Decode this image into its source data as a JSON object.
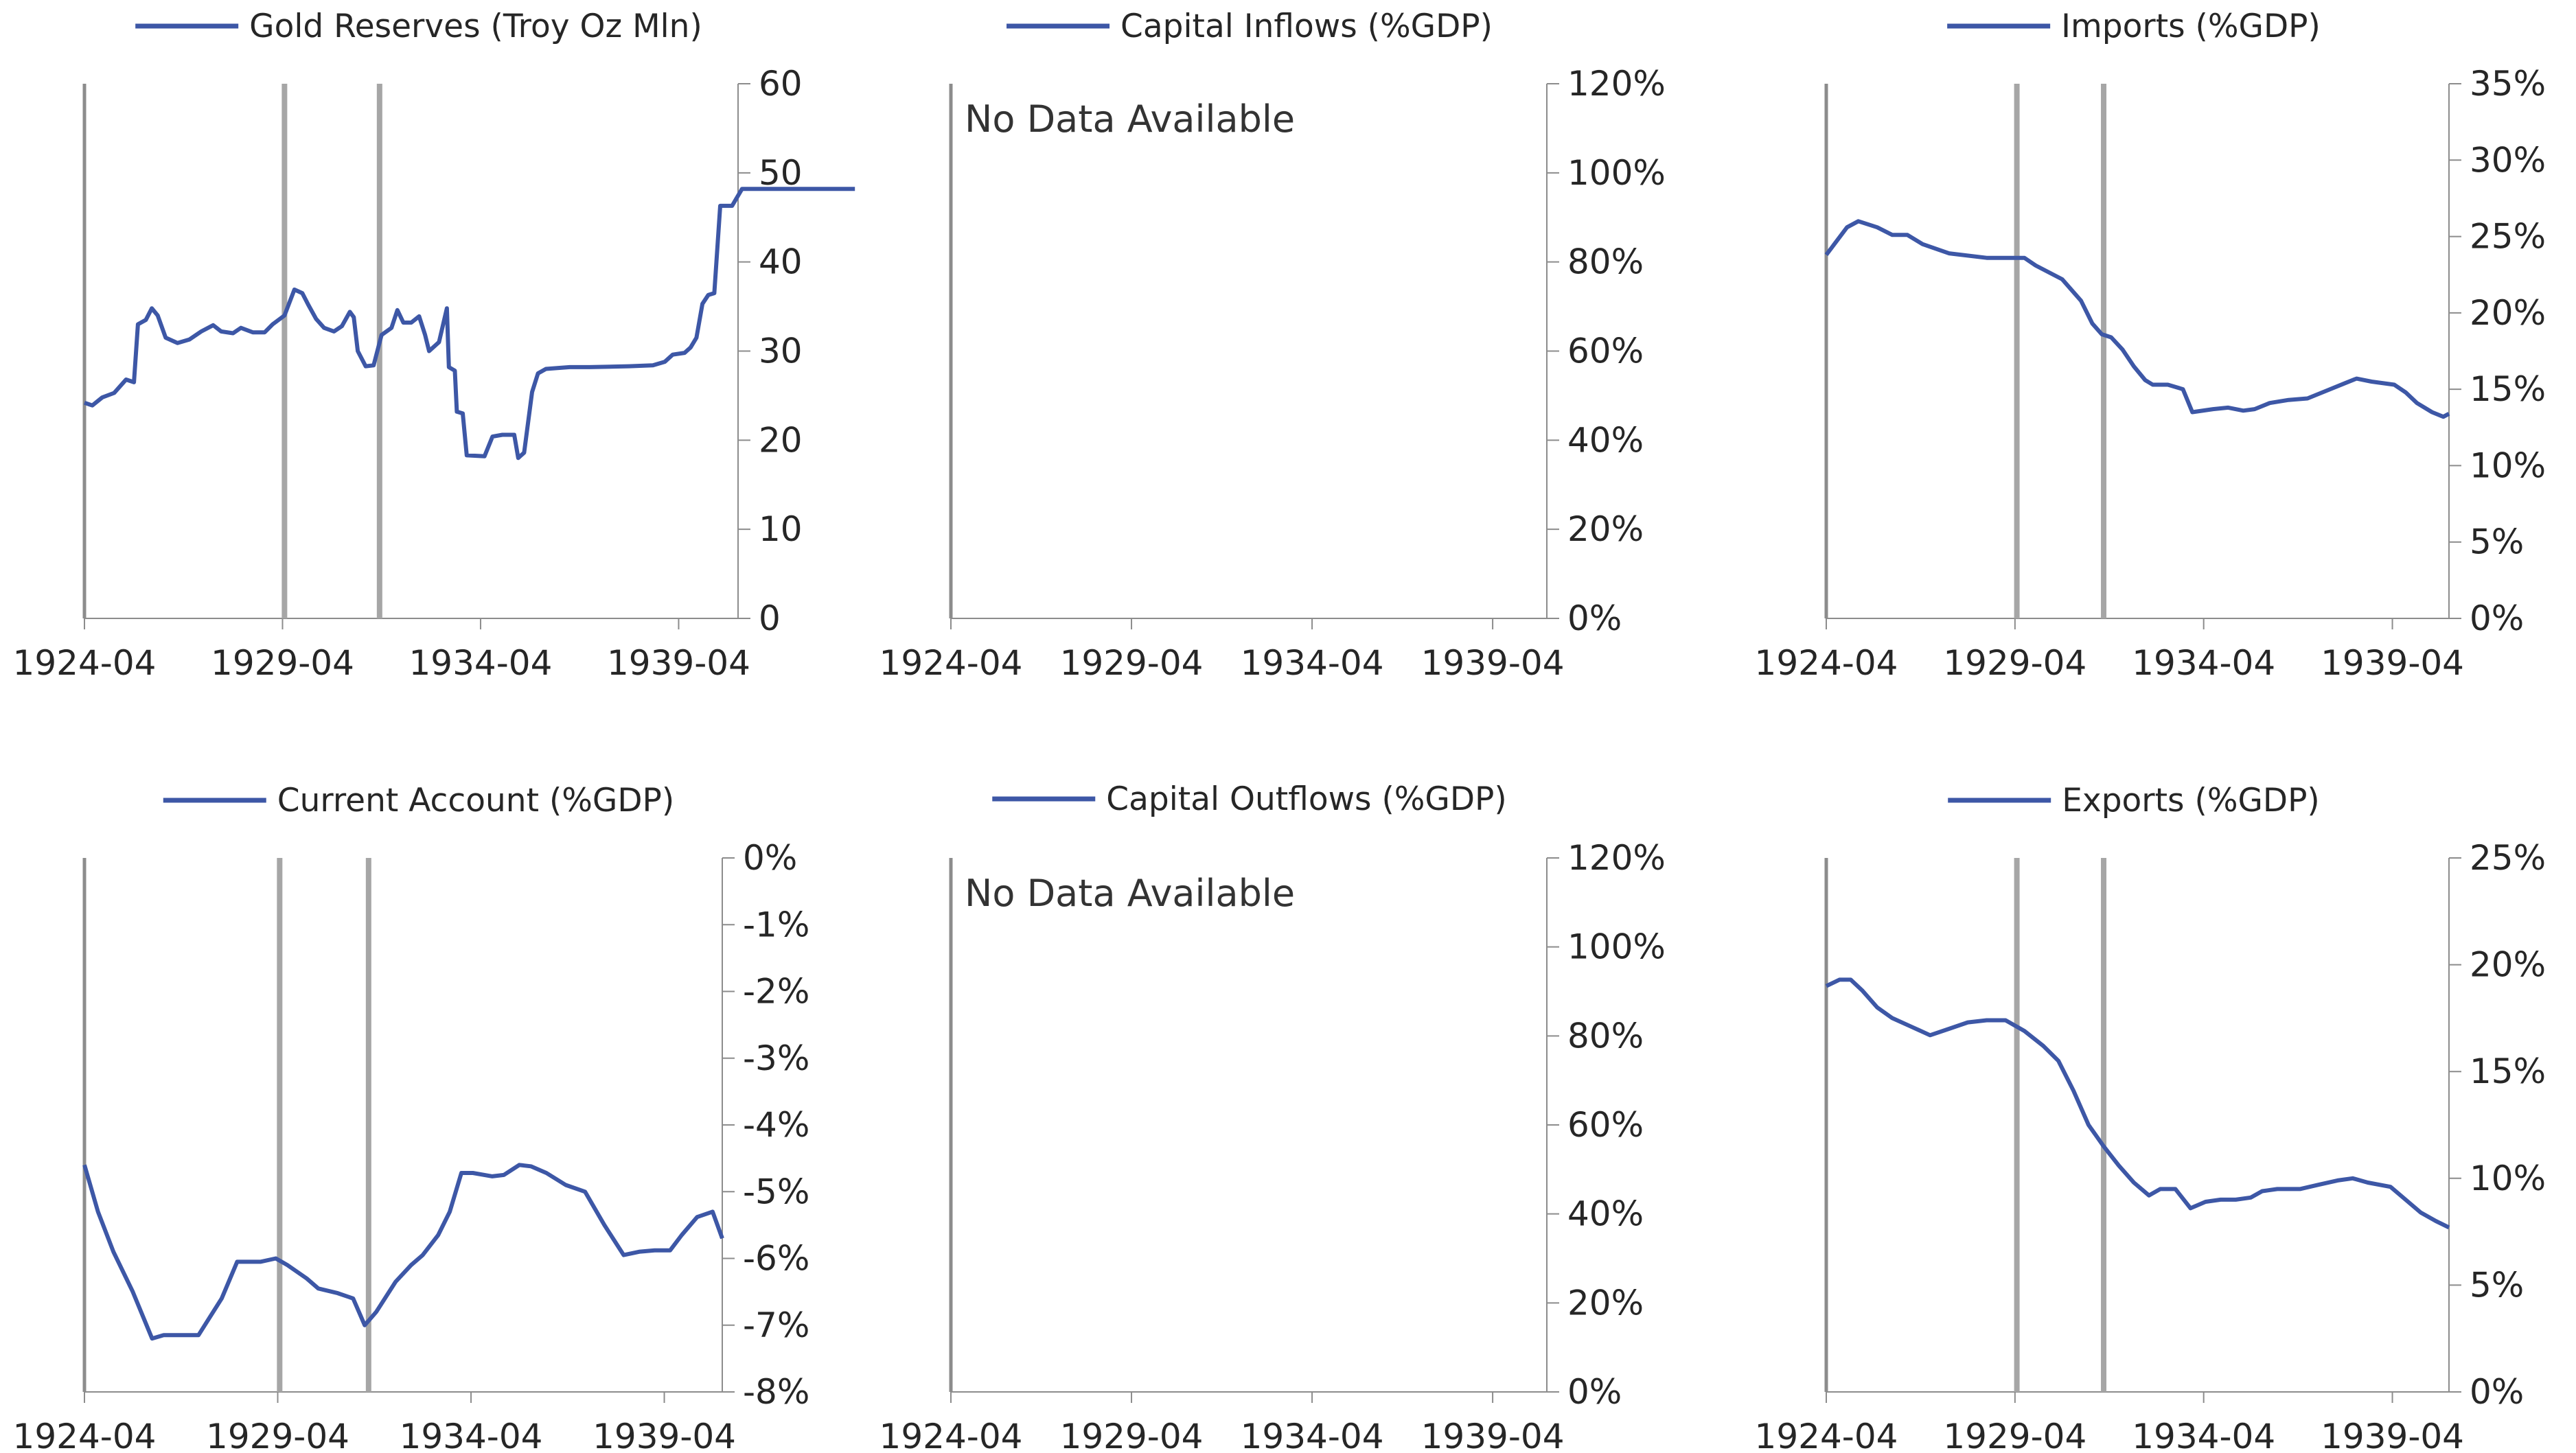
{
  "colors": {
    "line": "#3d57a6",
    "axis": "#8c8c8c",
    "event_line": "#a6a6a6",
    "text": "#262626"
  },
  "chart_data": [
    {
      "type": "line",
      "title": "",
      "series": [
        {
          "name": "Gold Reserves (Troy Oz Mln)",
          "points": [
            [
              1924.25,
              24.2
            ],
            [
              1924.45,
              23.9
            ],
            [
              1924.7,
              24.8
            ],
            [
              1925.0,
              25.3
            ],
            [
              1925.3,
              26.8
            ],
            [
              1925.5,
              26.5
            ],
            [
              1925.6,
              33.0
            ],
            [
              1925.8,
              33.5
            ],
            [
              1925.95,
              34.8
            ],
            [
              1926.1,
              34.0
            ],
            [
              1926.3,
              31.5
            ],
            [
              1926.6,
              30.9
            ],
            [
              1926.9,
              31.3
            ],
            [
              1927.2,
              32.2
            ],
            [
              1927.5,
              32.9
            ],
            [
              1927.7,
              32.2
            ],
            [
              1928.0,
              32.0
            ],
            [
              1928.2,
              32.6
            ],
            [
              1928.5,
              32.1
            ],
            [
              1928.8,
              32.1
            ],
            [
              1929.0,
              33.0
            ],
            [
              1929.3,
              34.0
            ],
            [
              1929.55,
              36.9
            ],
            [
              1929.75,
              36.5
            ],
            [
              1929.9,
              35.2
            ],
            [
              1930.1,
              33.6
            ],
            [
              1930.3,
              32.6
            ],
            [
              1930.55,
              32.2
            ],
            [
              1930.75,
              32.8
            ],
            [
              1930.95,
              34.4
            ],
            [
              1931.05,
              33.8
            ],
            [
              1931.15,
              30.0
            ],
            [
              1931.35,
              28.3
            ],
            [
              1931.55,
              28.4
            ],
            [
              1931.75,
              31.8
            ],
            [
              1932.0,
              32.6
            ],
            [
              1932.15,
              34.6
            ],
            [
              1932.3,
              33.2
            ],
            [
              1932.5,
              33.2
            ],
            [
              1932.7,
              33.9
            ],
            [
              1932.85,
              31.8
            ],
            [
              1932.95,
              30.0
            ],
            [
              1933.2,
              31.0
            ],
            [
              1933.4,
              34.8
            ],
            [
              1933.45,
              28.2
            ],
            [
              1933.6,
              27.8
            ],
            [
              1933.65,
              23.2
            ],
            [
              1933.8,
              23.0
            ],
            [
              1933.9,
              18.3
            ],
            [
              1934.35,
              18.2
            ],
            [
              1934.55,
              20.4
            ],
            [
              1934.8,
              20.6
            ],
            [
              1935.1,
              20.6
            ],
            [
              1935.2,
              18.0
            ],
            [
              1935.35,
              18.6
            ],
            [
              1935.55,
              25.4
            ],
            [
              1935.7,
              27.5
            ],
            [
              1935.9,
              28.0
            ],
            [
              1936.5,
              28.2
            ],
            [
              1937.0,
              28.2
            ],
            [
              1938.0,
              28.3
            ],
            [
              1938.6,
              28.4
            ],
            [
              1938.9,
              28.8
            ],
            [
              1939.1,
              29.6
            ],
            [
              1939.4,
              29.8
            ],
            [
              1939.55,
              30.4
            ],
            [
              1939.7,
              31.5
            ],
            [
              1939.85,
              35.3
            ],
            [
              1940.0,
              36.3
            ],
            [
              1940.15,
              36.5
            ],
            [
              1940.3,
              46.3
            ],
            [
              1940.6,
              46.3
            ],
            [
              1940.85,
              48.2
            ],
            [
              1941.3,
              48.2
            ],
            [
              1942.5,
              48.2
            ],
            [
              1943.7,
              48.2
            ]
          ]
        }
      ],
      "x_ticks": [
        "1924-04",
        "1929-04",
        "1934-04",
        "1939-04"
      ],
      "y_ticks": [
        "0",
        "10",
        "20",
        "30",
        "40",
        "50",
        "60"
      ],
      "ylim": [
        0,
        60
      ],
      "event_lines": [
        1929.3,
        1931.7
      ]
    },
    {
      "type": "line",
      "title": "",
      "series": [
        {
          "name": "Capital Inflows (%GDP)",
          "points": []
        }
      ],
      "annotation": "No Data Available",
      "x_ticks": [
        "1924-04",
        "1929-04",
        "1934-04",
        "1939-04"
      ],
      "y_ticks": [
        "0%",
        "20%",
        "40%",
        "60%",
        "80%",
        "100%",
        "120%"
      ],
      "ylim": [
        0,
        120
      ]
    },
    {
      "type": "line",
      "title": "",
      "series": [
        {
          "name": "Imports (%GDP)",
          "points": [
            [
              1924.25,
              23.8
            ],
            [
              1924.8,
              25.6
            ],
            [
              1925.1,
              26.0
            ],
            [
              1925.6,
              25.6
            ],
            [
              1926.0,
              25.1
            ],
            [
              1926.4,
              25.1
            ],
            [
              1926.8,
              24.5
            ],
            [
              1927.5,
              23.9
            ],
            [
              1928.5,
              23.6
            ],
            [
              1929.5,
              23.6
            ],
            [
              1929.8,
              23.1
            ],
            [
              1930.5,
              22.2
            ],
            [
              1931.0,
              20.8
            ],
            [
              1931.3,
              19.3
            ],
            [
              1931.55,
              18.6
            ],
            [
              1931.8,
              18.4
            ],
            [
              1932.1,
              17.6
            ],
            [
              1932.4,
              16.5
            ],
            [
              1932.7,
              15.6
            ],
            [
              1932.9,
              15.3
            ],
            [
              1933.3,
              15.3
            ],
            [
              1933.7,
              15.0
            ],
            [
              1933.95,
              13.5
            ],
            [
              1934.5,
              13.7
            ],
            [
              1934.9,
              13.8
            ],
            [
              1935.3,
              13.6
            ],
            [
              1935.6,
              13.7
            ],
            [
              1936.0,
              14.1
            ],
            [
              1936.5,
              14.3
            ],
            [
              1937.0,
              14.4
            ],
            [
              1937.5,
              14.9
            ],
            [
              1938.0,
              15.4
            ],
            [
              1938.3,
              15.7
            ],
            [
              1938.7,
              15.5
            ],
            [
              1939.3,
              15.3
            ],
            [
              1939.6,
              14.8
            ],
            [
              1939.9,
              14.1
            ],
            [
              1940.3,
              13.5
            ],
            [
              1940.6,
              13.2
            ],
            [
              1940.75,
              13.4
            ]
          ]
        }
      ],
      "x_ticks": [
        "1924-04",
        "1929-04",
        "1934-04",
        "1939-04"
      ],
      "y_ticks": [
        "0%",
        "5%",
        "10%",
        "15%",
        "20%",
        "25%",
        "30%",
        "35%"
      ],
      "ylim": [
        0,
        35
      ],
      "event_lines": [
        1929.3,
        1931.6
      ]
    },
    {
      "type": "line",
      "title": "",
      "series": [
        {
          "name": "Current Account (%GDP)",
          "points": [
            [
              1924.25,
              -4.6
            ],
            [
              1924.6,
              -5.3
            ],
            [
              1925.0,
              -5.9
            ],
            [
              1925.5,
              -6.5
            ],
            [
              1926.0,
              -7.2
            ],
            [
              1926.3,
              -7.15
            ],
            [
              1926.8,
              -7.15
            ],
            [
              1927.2,
              -7.15
            ],
            [
              1927.8,
              -6.6
            ],
            [
              1928.2,
              -6.05
            ],
            [
              1928.8,
              -6.05
            ],
            [
              1929.2,
              -6.0
            ],
            [
              1929.5,
              -6.1
            ],
            [
              1930.0,
              -6.3
            ],
            [
              1930.3,
              -6.45
            ],
            [
              1930.8,
              -6.52
            ],
            [
              1931.2,
              -6.6
            ],
            [
              1931.5,
              -7.0
            ],
            [
              1931.8,
              -6.8
            ],
            [
              1932.3,
              -6.35
            ],
            [
              1932.7,
              -6.1
            ],
            [
              1933.0,
              -5.95
            ],
            [
              1933.4,
              -5.65
            ],
            [
              1933.7,
              -5.3
            ],
            [
              1934.0,
              -4.72
            ],
            [
              1934.3,
              -4.72
            ],
            [
              1934.8,
              -4.77
            ],
            [
              1935.1,
              -4.75
            ],
            [
              1935.5,
              -4.6
            ],
            [
              1935.8,
              -4.62
            ],
            [
              1936.2,
              -4.72
            ],
            [
              1936.7,
              -4.9
            ],
            [
              1937.2,
              -5.0
            ],
            [
              1937.7,
              -5.5
            ],
            [
              1938.2,
              -5.95
            ],
            [
              1938.6,
              -5.9
            ],
            [
              1939.0,
              -5.88
            ],
            [
              1939.4,
              -5.88
            ],
            [
              1939.7,
              -5.65
            ],
            [
              1940.1,
              -5.38
            ],
            [
              1940.5,
              -5.3
            ],
            [
              1940.75,
              -5.7
            ]
          ]
        }
      ],
      "x_ticks": [
        "1924-04",
        "1929-04",
        "1934-04",
        "1939-04"
      ],
      "y_ticks": [
        "-8%",
        "-7%",
        "-6%",
        "-5%",
        "-4%",
        "-3%",
        "-2%",
        "-1%",
        "0%"
      ],
      "ylim": [
        -8,
        0
      ],
      "event_lines": [
        1929.3,
        1931.6
      ]
    },
    {
      "type": "line",
      "title": "",
      "series": [
        {
          "name": "Capital Outflows (%GDP)",
          "points": []
        }
      ],
      "annotation": "No Data Available",
      "x_ticks": [
        "1924-04",
        "1929-04",
        "1934-04",
        "1939-04"
      ],
      "y_ticks": [
        "0%",
        "20%",
        "40%",
        "60%",
        "80%",
        "100%",
        "120%"
      ],
      "ylim": [
        0,
        120
      ]
    },
    {
      "type": "line",
      "title": "",
      "series": [
        {
          "name": "Exports (%GDP)",
          "points": [
            [
              1924.25,
              19.0
            ],
            [
              1924.6,
              19.3
            ],
            [
              1924.9,
              19.3
            ],
            [
              1925.2,
              18.8
            ],
            [
              1925.6,
              18.0
            ],
            [
              1926.0,
              17.5
            ],
            [
              1926.5,
              17.1
            ],
            [
              1927.0,
              16.7
            ],
            [
              1927.5,
              17.0
            ],
            [
              1928.0,
              17.3
            ],
            [
              1928.5,
              17.4
            ],
            [
              1929.0,
              17.4
            ],
            [
              1929.5,
              16.9
            ],
            [
              1930.0,
              16.2
            ],
            [
              1930.4,
              15.5
            ],
            [
              1930.8,
              14.1
            ],
            [
              1931.2,
              12.5
            ],
            [
              1931.6,
              11.5
            ],
            [
              1932.0,
              10.6
            ],
            [
              1932.4,
              9.8
            ],
            [
              1932.8,
              9.2
            ],
            [
              1933.1,
              9.5
            ],
            [
              1933.5,
              9.5
            ],
            [
              1933.9,
              8.6
            ],
            [
              1934.3,
              8.9
            ],
            [
              1934.7,
              9.0
            ],
            [
              1935.1,
              9.0
            ],
            [
              1935.5,
              9.1
            ],
            [
              1935.8,
              9.4
            ],
            [
              1936.2,
              9.5
            ],
            [
              1936.8,
              9.5
            ],
            [
              1937.3,
              9.7
            ],
            [
              1937.8,
              9.9
            ],
            [
              1938.2,
              10.0
            ],
            [
              1938.6,
              9.8
            ],
            [
              1939.2,
              9.6
            ],
            [
              1939.6,
              9.0
            ],
            [
              1940.0,
              8.4
            ],
            [
              1940.4,
              8.0
            ],
            [
              1940.75,
              7.7
            ]
          ]
        }
      ],
      "x_ticks": [
        "1924-04",
        "1929-04",
        "1934-04",
        "1939-04"
      ],
      "y_ticks": [
        "0%",
        "5%",
        "10%",
        "15%",
        "20%",
        "25%"
      ],
      "ylim": [
        0,
        25
      ],
      "event_lines": [
        1929.3,
        1931.6
      ]
    }
  ]
}
